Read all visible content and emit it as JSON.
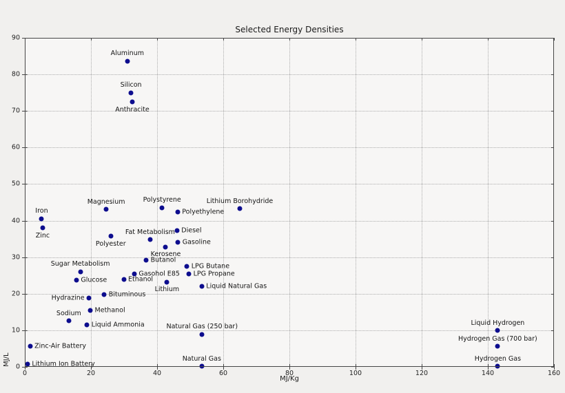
{
  "figure": {
    "background": "#f1f0ee",
    "plot_background": "#f7f6f5"
  },
  "chart_data": {
    "type": "scatter",
    "title": "Selected Energy Densities",
    "xlabel": "MJ/Kg",
    "ylabel": "MJ/L",
    "xlim": [
      0,
      160
    ],
    "ylim": [
      0,
      90
    ],
    "xticks": [
      0,
      20,
      40,
      60,
      80,
      100,
      120,
      140,
      160
    ],
    "yticks": [
      0,
      10,
      20,
      30,
      40,
      50,
      60,
      70,
      80,
      90
    ],
    "grid": true,
    "grid_style": "dotted",
    "legend_position": "none",
    "marker_color": "#0d0d8e",
    "points": [
      {
        "label": "Aluminum",
        "x": 31.0,
        "y": 83.6,
        "label_pos": "above"
      },
      {
        "label": "Silicon",
        "x": 32.1,
        "y": 75.0,
        "label_pos": "above"
      },
      {
        "label": "Anthracite",
        "x": 32.5,
        "y": 72.4,
        "label_pos": "below"
      },
      {
        "label": "Polystyrene",
        "x": 41.5,
        "y": 43.5,
        "label_pos": "above"
      },
      {
        "label": "Lithium Borohydride",
        "x": 65.0,
        "y": 43.3,
        "label_pos": "above"
      },
      {
        "label": "Magnesium",
        "x": 24.6,
        "y": 43.1,
        "label_pos": "above"
      },
      {
        "label": "Polyethylene",
        "x": 46.2,
        "y": 42.4,
        "label_pos": "right"
      },
      {
        "label": "Iron",
        "x": 5.1,
        "y": 40.5,
        "label_pos": "above"
      },
      {
        "label": "Zinc",
        "x": 5.4,
        "y": 38.0,
        "label_pos": "below"
      },
      {
        "label": "Diesel",
        "x": 46.0,
        "y": 37.2,
        "label_pos": "right"
      },
      {
        "label": "Polyester",
        "x": 26.0,
        "y": 35.7,
        "label_pos": "below"
      },
      {
        "label": "Fat Metabolism",
        "x": 37.9,
        "y": 34.8,
        "label_pos": "above"
      },
      {
        "label": "Gasoline",
        "x": 46.3,
        "y": 34.1,
        "label_pos": "right"
      },
      {
        "label": "Kerosene",
        "x": 42.6,
        "y": 32.8,
        "label_pos": "below"
      },
      {
        "label": "Butanol",
        "x": 36.7,
        "y": 29.1,
        "label_pos": "right"
      },
      {
        "label": "LPG Butane",
        "x": 49.0,
        "y": 27.5,
        "label_pos": "right"
      },
      {
        "label": "Sugar Metabolism",
        "x": 16.8,
        "y": 26.0,
        "label_pos": "above"
      },
      {
        "label": "Gasohol E85",
        "x": 33.1,
        "y": 25.5,
        "label_pos": "right"
      },
      {
        "label": "LPG Propane",
        "x": 49.6,
        "y": 25.4,
        "label_pos": "right"
      },
      {
        "label": "Ethanol",
        "x": 29.9,
        "y": 23.9,
        "label_pos": "right"
      },
      {
        "label": "Glucose",
        "x": 15.6,
        "y": 23.7,
        "label_pos": "right"
      },
      {
        "label": "Lithium",
        "x": 43.0,
        "y": 23.2,
        "label_pos": "below"
      },
      {
        "label": "Liquid Natural Gas",
        "x": 53.5,
        "y": 22.0,
        "label_pos": "right"
      },
      {
        "label": "Bituminous",
        "x": 24.0,
        "y": 19.8,
        "label_pos": "right"
      },
      {
        "label": "Hydrazine",
        "x": 19.4,
        "y": 18.9,
        "label_pos": "left"
      },
      {
        "label": "Methanol",
        "x": 19.8,
        "y": 15.4,
        "label_pos": "right"
      },
      {
        "label": "Sodium",
        "x": 13.3,
        "y": 12.6,
        "label_pos": "above"
      },
      {
        "label": "Liquid Ammonia",
        "x": 18.8,
        "y": 11.5,
        "label_pos": "right"
      },
      {
        "label": "Liquid Hydrogen",
        "x": 143.0,
        "y": 9.9,
        "label_pos": "above"
      },
      {
        "label": "Natural Gas (250 bar)",
        "x": 53.6,
        "y": 8.9,
        "label_pos": "above"
      },
      {
        "label": "Zinc-Air Battery",
        "x": 1.6,
        "y": 5.7,
        "label_pos": "right"
      },
      {
        "label": "Hydrogen Gas (700 bar)",
        "x": 143.0,
        "y": 5.6,
        "label_pos": "above"
      },
      {
        "label": "Lithium Ion Battery",
        "x": 0.8,
        "y": 0.8,
        "label_pos": "right"
      },
      {
        "label": "Natural Gas",
        "x": 53.5,
        "y": 0.1,
        "label_pos": "above"
      },
      {
        "label": "Hydrogen Gas",
        "x": 143.0,
        "y": 0.1,
        "label_pos": "above"
      }
    ]
  }
}
